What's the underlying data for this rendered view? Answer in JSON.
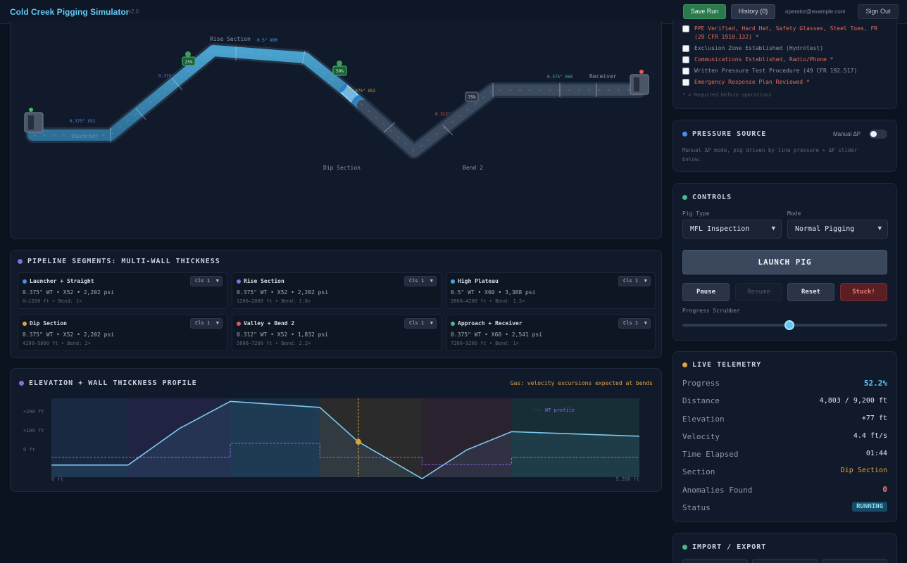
{
  "app": {
    "title": "Cold Creek Pigging Simulator",
    "version": "v2.0",
    "save_label": "Save Run",
    "history_label": "History (0)",
    "user_email": "operator@example.com",
    "signout_label": "Sign Out"
  },
  "pipeline_view": {
    "section_labels": [
      "Rise Section",
      "Dip Section",
      "Bend 2",
      "Receiver",
      "Launcher"
    ],
    "spec_labels": [
      "0.375\" X52",
      "0.375\"",
      "0.5\" X60",
      "0.375\" X52",
      "0.312\"",
      "0.375\" X60"
    ],
    "markers": [
      "25%",
      "50%",
      "75%"
    ]
  },
  "segments": {
    "title": "PIPELINE SEGMENTS: MULTI-WALL THICKNESS",
    "items": [
      {
        "name": "Launcher + Straight",
        "color": "#4a8fe0",
        "cls": "Cls 1",
        "spec": "0.375\" WT • X52 • 2,202 psi",
        "range": "0–1200 ft • Bend: 1×"
      },
      {
        "name": "Rise Section",
        "color": "#8a6ae6",
        "cls": "Cls 1",
        "spec": "0.375\" WT • X52 • 2,202 psi",
        "range": "1200–2800 ft • Bend: 1.8×"
      },
      {
        "name": "High Plateau",
        "color": "#4aa8e0",
        "cls": "Cls 1",
        "spec": "0.5\" WT • X60 • 3,388 psi",
        "range": "2800–4200 ft • Bend: 1.2×"
      },
      {
        "name": "Dip Section",
        "color": "#e0a33b",
        "cls": "Cls 1",
        "spec": "0.375\" WT • X52 • 2,202 psi",
        "range": "4200–5800 ft • Bend: 2×"
      },
      {
        "name": "Valley + Bend 2",
        "color": "#e05a5a",
        "cls": "Cls 1",
        "spec": "0.312\" WT • X52 • 1,832 psi",
        "range": "5800–7200 ft • Bend: 2.2×"
      },
      {
        "name": "Approach + Receiver",
        "color": "#4ab88a",
        "cls": "Cls 1",
        "spec": "0.375\" WT • X60 • 2,541 psi",
        "range": "7200–9200 ft • Bend: 1×"
      }
    ]
  },
  "elevation": {
    "title": "ELEVATION + WALL THICKNESS PROFILE",
    "note": "Gas: velocity excursions expected at bends",
    "ytick_labels": [
      "+200 ft",
      "+100 ft",
      "0 ft"
    ],
    "x_start": "0 ft",
    "x_end": "9,200 ft",
    "legend": "--- WT profile"
  },
  "chart_data": {
    "type": "line",
    "title": "ELEVATION + WALL THICKNESS PROFILE",
    "xlim": [
      0,
      9200
    ],
    "ylim": [
      -40,
      220
    ],
    "series": [
      {
        "name": "",
        "x": [
          0,
          1200,
          2000,
          2800,
          4200,
          4800,
          5800,
          6500,
          7200,
          9200
        ],
        "y": [
          0,
          0,
          120,
          210,
          190,
          77,
          -45,
          50,
          110,
          95
        ]
      },
      {
        "name": "WT profile",
        "x": [
          0,
          2800,
          2800,
          4200,
          4200,
          5800,
          5800,
          7200,
          7200,
          9200
        ],
        "y": [
          0.375,
          0.375,
          0.5,
          0.5,
          0.375,
          0.375,
          0.312,
          0.312,
          0.375,
          0.375
        ]
      }
    ],
    "current_position_ft": 4803
  },
  "checklist": {
    "items": [
      {
        "text": "PPE Verified, Hard Hat, Safety Glasses, Steel Toes, FR",
        "required": true
      },
      {
        "text": "(29 CFR 1910.132) *",
        "required": true
      },
      {
        "text": "Exclusion Zone Established (Hydrotest)",
        "required": false
      },
      {
        "text": "Communications Established, Radio/Phone *",
        "required": true
      },
      {
        "text": "Written Pressure Test Procedure (49 CFR 192.517)",
        "required": false
      },
      {
        "text": "Emergency Response Plan Reviewed *",
        "required": true
      }
    ],
    "footnote": "* = Required before operations"
  },
  "pressure": {
    "title": "PRESSURE SOURCE",
    "toggle_label": "Manual ΔP",
    "description_line1": "Manual ΔP mode, pig driven by line pressure + ΔP slider",
    "description_line2": "below."
  },
  "controls": {
    "title": "CONTROLS",
    "pig_type_label": "Pig Type",
    "pig_type_value": "MFL Inspection",
    "mode_label": "Mode",
    "mode_value": "Normal Pigging",
    "launch_label": "LAUNCH PIG",
    "pause_label": "Pause",
    "resume_label": "Resume",
    "reset_label": "Reset",
    "stuck_label": "Stuck!",
    "scrubber_label": "Progress Scrubber",
    "scrubber_value": 0.522
  },
  "telemetry": {
    "title": "LIVE TELEMETRY",
    "rows": [
      {
        "label": "Progress",
        "value": "52.2%"
      },
      {
        "label": "Distance",
        "value": "4,803 / 9,200 ft"
      },
      {
        "label": "Elevation",
        "value": "+77 ft"
      },
      {
        "label": "Velocity",
        "value": "4.4 ft/s"
      },
      {
        "label": "Time Elapsed",
        "value": "01:44"
      },
      {
        "label": "Section",
        "value": "Dip Section"
      },
      {
        "label": "Anomalies Found",
        "value": "0"
      },
      {
        "label": "Status",
        "value": "RUNNING"
      }
    ]
  },
  "import_export": {
    "title": "IMPORT / EXPORT"
  },
  "colors": {
    "accent": "#5fc8f2",
    "required": "#e46a5a",
    "warning": "#e0a33b",
    "running": "#5fc8f2"
  }
}
